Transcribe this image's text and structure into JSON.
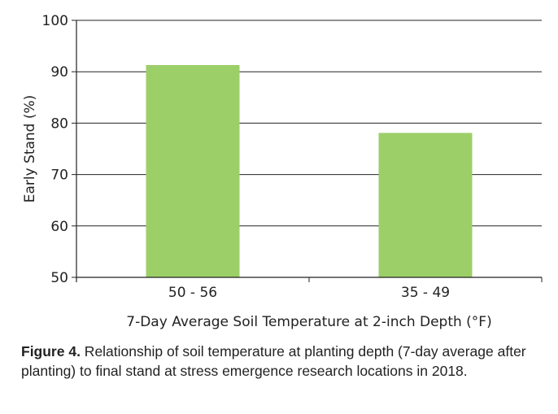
{
  "chart_data": {
    "type": "bar",
    "categories": [
      "50 - 56",
      "35 - 49"
    ],
    "values": [
      91.3,
      78.1
    ],
    "xlabel": "7-Day Average Soil Temperature at 2-inch Depth (°F)",
    "ylabel": "Early Stand (%)",
    "ylim": [
      50,
      100
    ],
    "yticks": [
      "50",
      "60",
      "70",
      "80",
      "90",
      "100"
    ],
    "grid": true,
    "bar_color": "#9ccf68"
  },
  "caption": {
    "label": "Figure 4.",
    "text": " Relationship of soil temperature at planting depth (7-day average after planting) to final stand at stress emergence research locations in 2018."
  }
}
